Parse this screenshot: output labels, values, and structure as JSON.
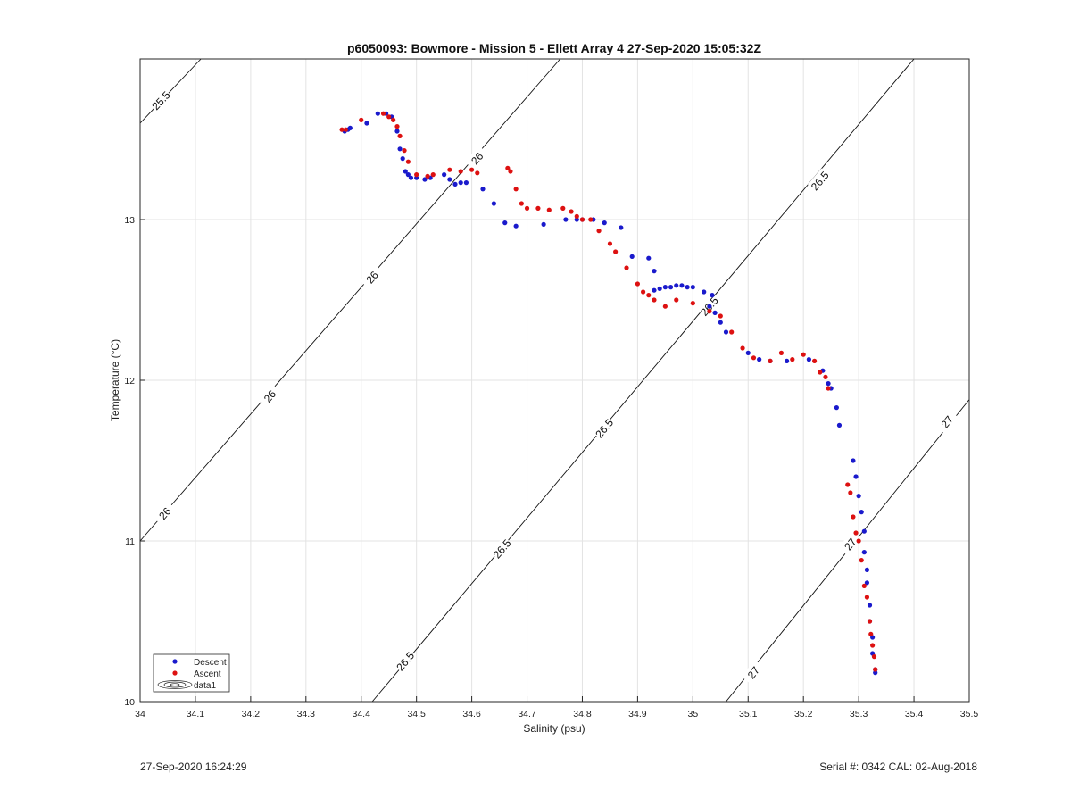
{
  "chart_data": {
    "type": "scatter",
    "title": "p6050093: Bowmore - Mission 5 - Ellett Array 4 27-Sep-2020 15:05:32Z",
    "xlabel": "Salinity (psu)",
    "ylabel": "Temperature (°C)",
    "xlim": [
      34,
      35.5
    ],
    "ylim": [
      10,
      14
    ],
    "xticks": [
      "34",
      "34.1",
      "34.2",
      "34.3",
      "34.4",
      "34.5",
      "34.6",
      "34.7",
      "34.8",
      "34.9",
      "35",
      "35.1",
      "35.2",
      "35.3",
      "35.4",
      "35.5"
    ],
    "yticks": [
      "10",
      "11",
      "12",
      "13"
    ],
    "grid": true,
    "legend_position": "bottom-left",
    "legend": [
      "Descent",
      "Ascent",
      "data1"
    ],
    "contours": [
      {
        "label": "25.5",
        "points": [
          [
            34.0,
            13.6
          ],
          [
            34.11,
            14.0
          ]
        ],
        "labels_at": [
          [
            34.038,
            13.74
          ]
        ]
      },
      {
        "label": "26",
        "points": [
          [
            34.0,
            11.0
          ],
          [
            34.76,
            14.0
          ]
        ],
        "labels_at": [
          [
            34.045,
            11.17
          ],
          [
            34.235,
            11.9
          ],
          [
            34.42,
            12.64
          ],
          [
            34.61,
            13.38
          ]
        ]
      },
      {
        "label": "26.5",
        "points": [
          [
            34.42,
            10.0
          ],
          [
            35.4,
            14.0
          ]
        ],
        "labels_at": [
          [
            34.48,
            10.25
          ],
          [
            34.655,
            10.95
          ],
          [
            34.84,
            11.7
          ],
          [
            35.03,
            12.46
          ],
          [
            35.23,
            13.24
          ]
        ]
      },
      {
        "label": "27",
        "points": [
          [
            35.06,
            10.0
          ],
          [
            35.5,
            11.88
          ]
        ],
        "labels_at": [
          [
            35.11,
            10.18
          ],
          [
            35.285,
            10.98
          ],
          [
            35.46,
            11.74
          ]
        ]
      }
    ],
    "series": [
      {
        "name": "Descent",
        "color": "#1a1acc",
        "x": [
          34.37,
          34.376,
          34.38,
          34.41,
          34.43,
          34.445,
          34.455,
          34.465,
          34.47,
          34.475,
          34.48,
          34.485,
          34.49,
          34.5,
          34.515,
          34.525,
          34.55,
          34.56,
          34.57,
          34.58,
          34.59,
          34.62,
          34.64,
          34.66,
          34.68,
          34.73,
          34.77,
          34.79,
          34.8,
          34.82,
          34.84,
          34.87,
          34.89,
          34.92,
          34.93,
          34.93,
          34.94,
          34.95,
          34.96,
          34.97,
          34.98,
          34.99,
          35.0,
          35.02,
          35.035,
          35.03,
          35.04,
          35.05,
          35.06,
          35.1,
          35.12,
          35.14,
          35.17,
          35.21,
          35.235,
          35.245,
          35.25,
          35.26,
          35.265,
          35.29,
          35.295,
          35.3,
          35.305,
          35.31,
          35.31,
          35.315,
          35.315,
          35.32,
          35.32,
          35.325,
          35.325,
          35.33,
          35.33
        ],
        "y": [
          13.55,
          13.56,
          13.57,
          13.6,
          13.66,
          13.66,
          13.64,
          13.55,
          13.44,
          13.38,
          13.3,
          13.28,
          13.26,
          13.26,
          13.25,
          13.26,
          13.28,
          13.25,
          13.22,
          13.23,
          13.23,
          13.19,
          13.1,
          12.98,
          12.96,
          12.97,
          13.0,
          13.0,
          13.0,
          13.0,
          12.98,
          12.95,
          12.77,
          12.76,
          12.68,
          12.56,
          12.57,
          12.58,
          12.58,
          12.59,
          12.59,
          12.58,
          12.58,
          12.55,
          12.53,
          12.46,
          12.42,
          12.36,
          12.3,
          12.17,
          12.13,
          12.12,
          12.12,
          12.13,
          12.06,
          11.98,
          11.95,
          11.83,
          11.72,
          11.5,
          11.4,
          11.28,
          11.18,
          11.06,
          10.93,
          10.82,
          10.74,
          10.6,
          10.5,
          10.4,
          10.3,
          10.2,
          10.18
        ]
      },
      {
        "name": "Ascent",
        "color": "#dd1111",
        "x": [
          34.365,
          34.372,
          34.4,
          34.44,
          34.45,
          34.458,
          34.465,
          34.47,
          34.478,
          34.485,
          34.5,
          34.52,
          34.53,
          34.56,
          34.58,
          34.6,
          34.61,
          34.665,
          34.67,
          34.68,
          34.69,
          34.7,
          34.72,
          34.74,
          34.765,
          34.78,
          34.79,
          34.8,
          34.815,
          34.83,
          34.85,
          34.86,
          34.88,
          34.9,
          34.91,
          34.92,
          34.93,
          34.95,
          34.97,
          35.0,
          35.03,
          35.05,
          35.07,
          35.09,
          35.11,
          35.14,
          35.16,
          35.18,
          35.2,
          35.22,
          35.23,
          35.24,
          35.245,
          35.28,
          35.285,
          35.29,
          35.295,
          35.3,
          35.305,
          35.31,
          35.315,
          35.32,
          35.322,
          35.325,
          35.328,
          35.33
        ],
        "y": [
          13.56,
          13.56,
          13.62,
          13.66,
          13.64,
          13.62,
          13.58,
          13.52,
          13.43,
          13.36,
          13.28,
          13.27,
          13.28,
          13.31,
          13.3,
          13.31,
          13.29,
          13.32,
          13.3,
          13.19,
          13.1,
          13.07,
          13.07,
          13.06,
          13.07,
          13.05,
          13.02,
          13.0,
          13.0,
          12.93,
          12.85,
          12.8,
          12.7,
          12.6,
          12.55,
          12.53,
          12.5,
          12.46,
          12.5,
          12.48,
          12.43,
          12.4,
          12.3,
          12.2,
          12.14,
          12.12,
          12.17,
          12.13,
          12.16,
          12.12,
          12.05,
          12.02,
          11.95,
          11.35,
          11.3,
          11.15,
          11.05,
          11.0,
          10.88,
          10.72,
          10.65,
          10.5,
          10.42,
          10.35,
          10.28,
          10.2
        ]
      }
    ]
  },
  "footer": {
    "left": "27-Sep-2020 16:24:29",
    "right": "Serial #: 0342  CAL: 02-Aug-2018"
  }
}
